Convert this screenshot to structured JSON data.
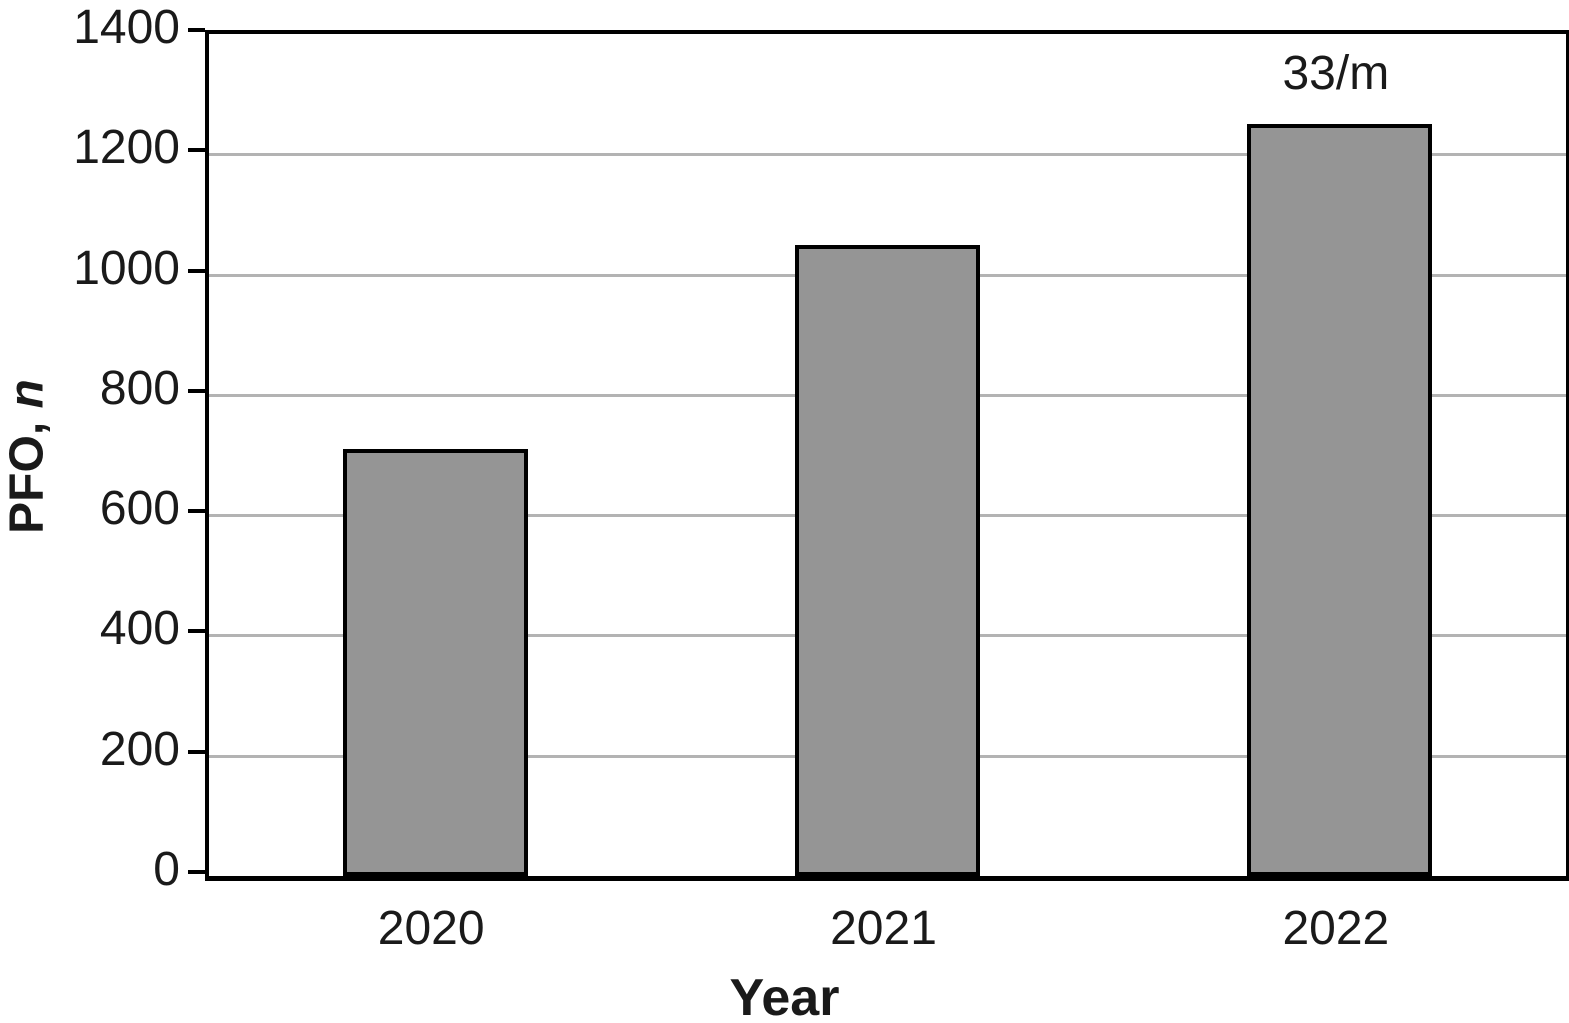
{
  "figure": {
    "background": "#ffffff"
  },
  "chart_data": {
    "type": "bar",
    "categories": [
      "2020",
      "2021",
      "2022"
    ],
    "values": [
      710,
      1050,
      1250
    ],
    "title": "",
    "xlabel": "Year",
    "ylabel": "PFO, n",
    "ylabel_parts": {
      "prefix": "PFO, ",
      "italic": "n"
    },
    "ylim": [
      0,
      1400
    ],
    "ytick_step": 200,
    "ytick_labels": [
      "0",
      "200",
      "400",
      "600",
      "800",
      "1000",
      "1200",
      "1400"
    ],
    "grid": "horizontal gridlines every 200, light gray",
    "legend": "none",
    "bar_fill_color": "#959595",
    "bar_border_color": "#000000",
    "gridline_color": "#b3b3b3",
    "axis_color": "#000000",
    "text_color": "#1a1a1a",
    "annotations": [
      {
        "category": "2022",
        "text": "33/m"
      }
    ]
  }
}
